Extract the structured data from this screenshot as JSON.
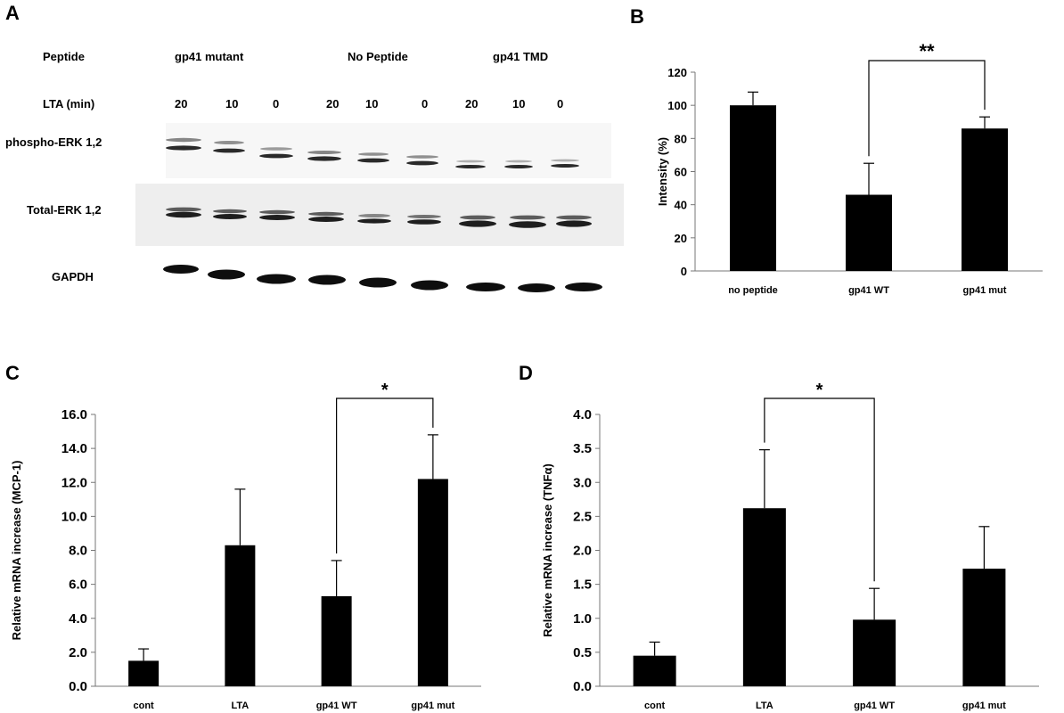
{
  "panels": {
    "a": "A",
    "b": "B",
    "c": "C",
    "d": "D"
  },
  "blot": {
    "peptide_label": "Peptide",
    "groups": [
      "gp41 mutant",
      "No Peptide",
      "gp41 TMD"
    ],
    "time_label": "LTA  (min)",
    "times": [
      "20",
      "10",
      "0",
      "20",
      "10",
      "0",
      "20",
      "10",
      "0"
    ],
    "rows": [
      "phospho-ERK 1,2",
      "Total-ERK 1,2",
      "GAPDH"
    ]
  },
  "chart_data": [
    {
      "type": "bar",
      "title": "",
      "ylabel": "Intensity (%)",
      "categories": [
        "no peptide",
        "gp41 WT",
        "gp41 mut"
      ],
      "values": [
        100,
        46,
        86
      ],
      "errors": [
        8,
        19,
        7
      ],
      "ylim": [
        0,
        120
      ],
      "yticks": [
        0,
        20,
        40,
        60,
        80,
        100,
        120
      ],
      "tick_format": 0,
      "significance": {
        "from": 1,
        "to": 2,
        "label": "**"
      },
      "color": "#000000"
    },
    {
      "type": "bar",
      "title": "",
      "ylabel": "Relative mRNA  increase (MCP-1)",
      "categories": [
        "cont",
        "LTA",
        "gp41 WT",
        "gp41 mut"
      ],
      "values": [
        1.5,
        8.3,
        5.3,
        12.2
      ],
      "errors": [
        0.7,
        3.3,
        2.1,
        2.6
      ],
      "ylim": [
        0,
        16
      ],
      "yticks": [
        0,
        2,
        4,
        6,
        8,
        10,
        12,
        14,
        16
      ],
      "tick_format": 1,
      "significance": {
        "from": 2,
        "to": 3,
        "label": "*"
      },
      "color": "#000000"
    },
    {
      "type": "bar",
      "title": "",
      "ylabel": "Relative mRNA  increase (TNFα)",
      "categories": [
        "cont",
        "LTA",
        "gp41 WT",
        "gp41 mut"
      ],
      "values": [
        0.45,
        2.62,
        0.98,
        1.73
      ],
      "errors": [
        0.2,
        0.86,
        0.46,
        0.62
      ],
      "ylim": [
        0,
        4
      ],
      "yticks": [
        0,
        0.5,
        1,
        1.5,
        2,
        2.5,
        3,
        3.5,
        4
      ],
      "tick_format": 1,
      "significance": {
        "from": 1,
        "to": 2,
        "label": "*"
      },
      "color": "#000000"
    }
  ]
}
